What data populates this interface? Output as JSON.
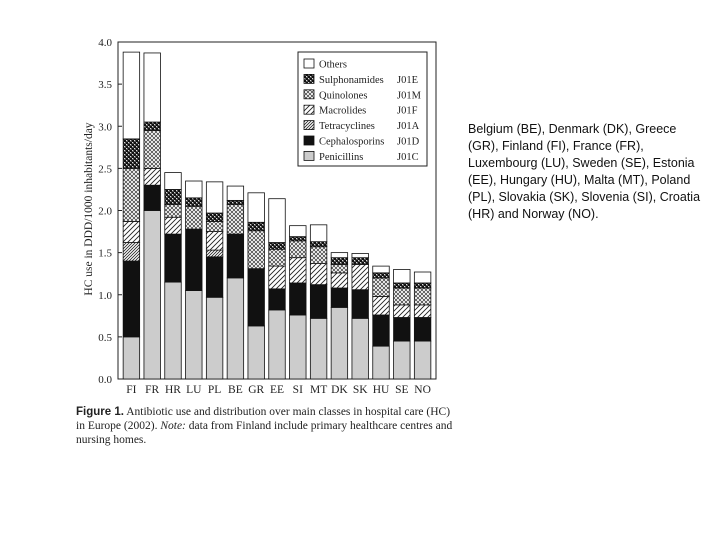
{
  "chart_data": {
    "type": "bar",
    "stacked": true,
    "ylabel": "HC use in DDD/1000 inhabitants/day",
    "ylim": [
      0,
      4.0
    ],
    "yticks": [
      "0.0",
      "0.5",
      "1.0",
      "1.5",
      "2.0",
      "2.5",
      "3.0",
      "3.5",
      "4.0"
    ],
    "categories": [
      "FI",
      "FR",
      "HR",
      "LU",
      "PL",
      "BE",
      "GR",
      "EE",
      "SI",
      "MT",
      "DK",
      "SK",
      "HU",
      "SE",
      "NO"
    ],
    "series": [
      {
        "name": "Penicillins",
        "code": "J01C",
        "pattern": "light-gray",
        "values": [
          0.5,
          2.0,
          1.15,
          1.05,
          0.97,
          1.2,
          0.63,
          0.82,
          0.76,
          0.72,
          0.85,
          0.72,
          0.39,
          0.45,
          0.45
        ]
      },
      {
        "name": "Cephalosporins",
        "code": "J01D",
        "pattern": "black",
        "values": [
          0.9,
          0.3,
          0.57,
          0.73,
          0.48,
          0.52,
          0.68,
          0.25,
          0.38,
          0.4,
          0.23,
          0.34,
          0.37,
          0.28,
          0.28
        ]
      },
      {
        "name": "Tetracyclines",
        "code": "J01A",
        "pattern": "diagonal-dense",
        "values": [
          0.22,
          0.0,
          0.0,
          0.0,
          0.08,
          0.0,
          0.0,
          0.0,
          0.0,
          0.0,
          0.0,
          0.0,
          0.0,
          0.0,
          0.0
        ]
      },
      {
        "name": "Macrolides",
        "code": "J01F",
        "pattern": "diagonal",
        "values": [
          0.25,
          0.2,
          0.2,
          0.0,
          0.22,
          0.0,
          0.0,
          0.27,
          0.3,
          0.25,
          0.18,
          0.3,
          0.22,
          0.15,
          0.15
        ]
      },
      {
        "name": "Quinolones",
        "code": "J01M",
        "pattern": "crosshatch",
        "values": [
          0.63,
          0.45,
          0.15,
          0.27,
          0.12,
          0.35,
          0.45,
          0.2,
          0.2,
          0.2,
          0.1,
          0.0,
          0.22,
          0.2,
          0.2
        ]
      },
      {
        "name": "Sulphonamides",
        "code": "J01E",
        "pattern": "dark-checker",
        "values": [
          0.35,
          0.1,
          0.18,
          0.1,
          0.1,
          0.05,
          0.1,
          0.08,
          0.05,
          0.06,
          0.08,
          0.08,
          0.06,
          0.06,
          0.06
        ]
      },
      {
        "name": "Others",
        "code": "",
        "pattern": "white",
        "values": [
          1.03,
          0.82,
          0.2,
          0.2,
          0.37,
          0.17,
          0.35,
          0.52,
          0.13,
          0.2,
          0.06,
          0.05,
          0.08,
          0.16,
          0.13
        ]
      }
    ],
    "legend_order": [
      "Others",
      "Sulphonamides",
      "Quinolones",
      "Macrolides",
      "Tetracyclines",
      "Cephalosporins",
      "Penicillins"
    ],
    "legend_position": "top-right"
  },
  "caption": {
    "label": "Figure 1.",
    "text_before_note": "Antibiotic use and distribution over main classes in hospital care (HC) in Europe (2002).",
    "note_label": "Note:",
    "text_after_note": "data from Finland include primary healthcare centres and nursing homes."
  },
  "side_note": "Belgium (BE), Denmark (DK), Greece (GR), Finland (FI), France (FR), Luxembourg (LU), Sweden (SE), Estonia (EE), Hungary (HU), Malta (MT), Poland (PL), Slovakia (SK), Slovenia (SI), Croatia (HR) and Norway (NO)."
}
